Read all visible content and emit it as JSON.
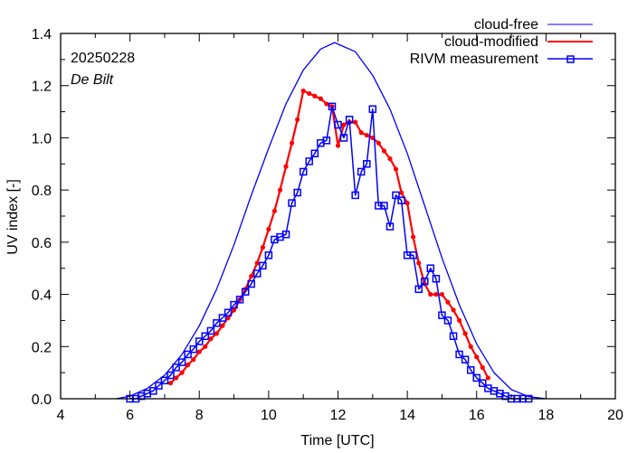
{
  "chart_data": {
    "type": "line",
    "title": "",
    "annotations": [
      {
        "text": "20250228",
        "style": "normal",
        "position": "top-left"
      },
      {
        "text": "De Bilt",
        "style": "italic",
        "position": "top-left"
      }
    ],
    "xlabel": "Time  [UTC]",
    "ylabel": "UV index  [-]",
    "xlim": [
      4,
      20
    ],
    "ylim": [
      0,
      1.4
    ],
    "xticks": [
      4,
      6,
      8,
      10,
      12,
      14,
      16,
      18,
      20
    ],
    "xtick_labels": [
      "4",
      "6",
      "8",
      "10",
      "12",
      "14",
      "16",
      "18",
      "20"
    ],
    "xminor_step": 1,
    "yticks": [
      0.0,
      0.2,
      0.4,
      0.6,
      0.8,
      1.0,
      1.2,
      1.4
    ],
    "ytick_labels": [
      "0.0",
      "0.2",
      "0.4",
      "0.6",
      "0.8",
      "1.0",
      "1.2",
      "1.4"
    ],
    "yminor_step": 0.1,
    "grid": false,
    "legend": {
      "position": "top-right"
    },
    "colors": {
      "cloud_free": "#0000ff",
      "cloud_modified": "#ff0000",
      "measurement": "#0000ff",
      "axis": "#000000"
    },
    "series": [
      {
        "name": "cloud-free",
        "style": "line",
        "peak_time": 11.9,
        "peak_value": 1.365,
        "x": [
          5.6,
          6.0,
          6.5,
          7.0,
          7.5,
          8.0,
          8.5,
          9.0,
          9.5,
          10.0,
          10.5,
          11.0,
          11.5,
          11.9,
          12.5,
          13.0,
          13.5,
          14.0,
          14.5,
          15.0,
          15.5,
          16.0,
          16.5,
          17.0,
          17.5,
          18.0
        ],
        "y": [
          0.0,
          0.01,
          0.04,
          0.09,
          0.17,
          0.28,
          0.42,
          0.59,
          0.78,
          0.96,
          1.13,
          1.26,
          1.34,
          1.365,
          1.33,
          1.24,
          1.11,
          0.94,
          0.74,
          0.54,
          0.36,
          0.21,
          0.1,
          0.035,
          0.008,
          0.0
        ]
      },
      {
        "name": "cloud-modified",
        "style": "line-dots",
        "x": [
          7.17,
          7.33,
          7.5,
          7.67,
          7.83,
          8.0,
          8.17,
          8.33,
          8.5,
          8.67,
          8.83,
          9.0,
          9.17,
          9.33,
          9.5,
          9.67,
          9.83,
          10.0,
          10.17,
          10.33,
          10.5,
          10.67,
          10.83,
          11.0,
          11.17,
          11.33,
          11.5,
          11.67,
          11.83,
          12.0,
          12.17,
          12.33,
          12.5,
          12.67,
          12.83,
          13.0,
          13.17,
          13.33,
          13.5,
          13.67,
          13.83,
          14.0,
          14.17,
          14.33,
          14.5,
          14.67,
          14.83,
          15.0,
          15.17,
          15.33,
          15.5,
          15.67,
          15.83,
          16.0,
          16.17,
          16.33
        ],
        "y": [
          0.06,
          0.08,
          0.1,
          0.13,
          0.15,
          0.18,
          0.2,
          0.23,
          0.25,
          0.28,
          0.31,
          0.34,
          0.38,
          0.42,
          0.47,
          0.52,
          0.58,
          0.65,
          0.72,
          0.8,
          0.89,
          0.98,
          1.07,
          1.18,
          1.17,
          1.16,
          1.15,
          1.13,
          1.12,
          0.97,
          1.05,
          1.06,
          1.06,
          1.02,
          1.01,
          1.0,
          0.98,
          0.95,
          0.92,
          0.88,
          0.79,
          0.75,
          0.62,
          0.52,
          0.44,
          0.4,
          0.4,
          0.4,
          0.37,
          0.34,
          0.3,
          0.25,
          0.2,
          0.16,
          0.12,
          0.08
        ]
      },
      {
        "name": "RIVM measurement",
        "style": "line-squares",
        "x": [
          6.0,
          6.17,
          6.33,
          6.5,
          6.67,
          6.83,
          7.0,
          7.17,
          7.33,
          7.5,
          7.67,
          7.83,
          8.0,
          8.17,
          8.33,
          8.5,
          8.67,
          8.83,
          9.0,
          9.17,
          9.33,
          9.5,
          9.67,
          9.83,
          10.0,
          10.17,
          10.33,
          10.5,
          10.67,
          10.83,
          11.0,
          11.17,
          11.33,
          11.5,
          11.67,
          11.83,
          12.0,
          12.17,
          12.33,
          12.5,
          12.67,
          12.83,
          13.0,
          13.17,
          13.33,
          13.5,
          13.67,
          13.83,
          14.0,
          14.17,
          14.33,
          14.5,
          14.67,
          14.83,
          15.0,
          15.17,
          15.33,
          15.5,
          15.67,
          15.83,
          16.0,
          16.17,
          16.33,
          16.5,
          16.67,
          16.83,
          17.0,
          17.17,
          17.33,
          17.5
        ],
        "y": [
          0.0,
          0.0,
          0.01,
          0.02,
          0.03,
          0.05,
          0.07,
          0.09,
          0.12,
          0.14,
          0.17,
          0.19,
          0.22,
          0.24,
          0.26,
          0.29,
          0.31,
          0.33,
          0.36,
          0.38,
          0.41,
          0.44,
          0.48,
          0.51,
          0.55,
          0.61,
          0.62,
          0.63,
          0.75,
          0.79,
          0.87,
          0.91,
          0.94,
          0.98,
          0.99,
          1.12,
          1.05,
          1.0,
          1.07,
          0.78,
          0.87,
          0.9,
          1.11,
          0.74,
          0.74,
          0.66,
          0.78,
          0.76,
          0.55,
          0.55,
          0.42,
          0.45,
          0.5,
          0.46,
          0.32,
          0.3,
          0.24,
          0.17,
          0.15,
          0.11,
          0.08,
          0.06,
          0.04,
          0.03,
          0.02,
          0.01,
          0.0,
          0.0,
          0.0,
          0.0
        ]
      }
    ]
  }
}
